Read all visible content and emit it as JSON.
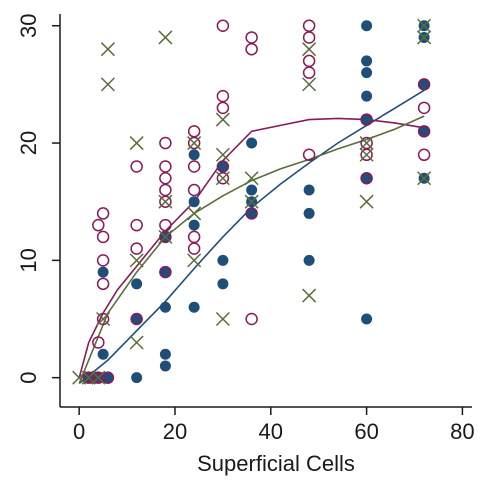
{
  "chart_data": {
    "type": "scatter",
    "title": "",
    "xlabel": "Superficial Cells",
    "ylabel": "",
    "xlim": [
      -4,
      82
    ],
    "ylim": [
      -2.5,
      31
    ],
    "x_ticks": [
      "0",
      "20",
      "40",
      "60",
      "80"
    ],
    "y_ticks": [
      "0",
      "10",
      "20",
      "30"
    ],
    "grid": false,
    "legend": "none",
    "colors": {
      "blue": "#1f4e79",
      "maroon": "#8a1a5a",
      "olive": "#5a6e3a",
      "axis": "#1a1a1a"
    },
    "series": [
      {
        "marker": "filled-circle",
        "color": "#1f4e79",
        "points": [
          [
            2,
            0
          ],
          [
            3,
            0
          ],
          [
            4,
            0
          ],
          [
            5,
            0
          ],
          [
            5,
            2
          ],
          [
            5,
            9
          ],
          [
            6,
            0
          ],
          [
            12,
            0
          ],
          [
            12,
            5
          ],
          [
            12,
            8
          ],
          [
            18,
            1
          ],
          [
            18,
            2
          ],
          [
            18,
            6
          ],
          [
            18,
            9
          ],
          [
            18,
            12
          ],
          [
            24,
            6
          ],
          [
            24,
            13
          ],
          [
            24,
            15
          ],
          [
            24,
            19
          ],
          [
            30,
            8
          ],
          [
            30,
            10
          ],
          [
            30,
            18
          ],
          [
            36,
            14
          ],
          [
            36,
            15
          ],
          [
            36,
            16
          ],
          [
            36,
            20
          ],
          [
            48,
            10
          ],
          [
            48,
            14
          ],
          [
            48,
            16
          ],
          [
            60,
            5
          ],
          [
            60,
            17
          ],
          [
            60,
            22
          ],
          [
            60,
            24
          ],
          [
            60,
            26
          ],
          [
            60,
            27
          ],
          [
            60,
            30
          ],
          [
            72,
            17
          ],
          [
            72,
            21
          ],
          [
            72,
            25
          ],
          [
            72,
            29
          ],
          [
            72,
            30
          ]
        ]
      },
      {
        "marker": "hollow-circle",
        "color": "#8a1a5a",
        "points": [
          [
            2,
            0
          ],
          [
            3,
            0
          ],
          [
            4,
            0
          ],
          [
            4,
            3
          ],
          [
            4,
            13
          ],
          [
            5,
            5
          ],
          [
            5,
            8
          ],
          [
            5,
            10
          ],
          [
            5,
            12
          ],
          [
            5,
            14
          ],
          [
            6,
            0
          ],
          [
            12,
            5
          ],
          [
            12,
            11
          ],
          [
            12,
            13
          ],
          [
            12,
            18
          ],
          [
            18,
            9
          ],
          [
            18,
            12
          ],
          [
            18,
            13
          ],
          [
            18,
            15
          ],
          [
            18,
            16
          ],
          [
            18,
            17
          ],
          [
            18,
            18
          ],
          [
            18,
            20
          ],
          [
            24,
            11
          ],
          [
            24,
            12
          ],
          [
            24,
            16
          ],
          [
            24,
            18
          ],
          [
            24,
            20
          ],
          [
            24,
            21
          ],
          [
            30,
            17
          ],
          [
            30,
            18
          ],
          [
            30,
            23
          ],
          [
            30,
            24
          ],
          [
            30,
            30
          ],
          [
            36,
            5
          ],
          [
            36,
            14
          ],
          [
            36,
            28
          ],
          [
            36,
            29
          ],
          [
            48,
            19
          ],
          [
            48,
            26
          ],
          [
            48,
            27
          ],
          [
            48,
            29
          ],
          [
            48,
            30
          ],
          [
            60,
            17
          ],
          [
            60,
            19
          ],
          [
            60,
            20
          ],
          [
            60,
            22
          ],
          [
            72,
            19
          ],
          [
            72,
            21
          ],
          [
            72,
            23
          ],
          [
            72,
            25
          ]
        ]
      },
      {
        "marker": "x",
        "color": "#5a6e3a",
        "points": [
          [
            0,
            0
          ],
          [
            2,
            0
          ],
          [
            4,
            0
          ],
          [
            5,
            5
          ],
          [
            6,
            25
          ],
          [
            6,
            28
          ],
          [
            12,
            3
          ],
          [
            12,
            10
          ],
          [
            12,
            20
          ],
          [
            18,
            12
          ],
          [
            18,
            15
          ],
          [
            18,
            29
          ],
          [
            24,
            10
          ],
          [
            24,
            14
          ],
          [
            24,
            20
          ],
          [
            30,
            5
          ],
          [
            30,
            17
          ],
          [
            30,
            19
          ],
          [
            30,
            22
          ],
          [
            36,
            15
          ],
          [
            36,
            17
          ],
          [
            48,
            7
          ],
          [
            48,
            25
          ],
          [
            48,
            28
          ],
          [
            60,
            15
          ],
          [
            60,
            19
          ],
          [
            60,
            20
          ],
          [
            72,
            17
          ],
          [
            72,
            29
          ],
          [
            72,
            30
          ]
        ]
      }
    ],
    "curves": [
      {
        "color": "#1f4e79",
        "points": [
          [
            0,
            -0.5
          ],
          [
            6,
            1.5
          ],
          [
            12,
            4
          ],
          [
            18,
            6.5
          ],
          [
            24,
            9.3
          ],
          [
            30,
            12
          ],
          [
            36,
            14.5
          ],
          [
            42,
            16.5
          ],
          [
            48,
            18.3
          ],
          [
            54,
            20
          ],
          [
            60,
            21.5
          ],
          [
            66,
            23
          ],
          [
            72,
            24.5
          ]
        ]
      },
      {
        "color": "#8a1a5a",
        "points": [
          [
            0,
            0
          ],
          [
            2,
            3
          ],
          [
            5,
            5.5
          ],
          [
            8,
            7.5
          ],
          [
            12,
            9.5
          ],
          [
            18,
            12.5
          ],
          [
            24,
            15
          ],
          [
            30,
            18.5
          ],
          [
            36,
            21
          ],
          [
            42,
            21.5
          ],
          [
            48,
            22
          ],
          [
            54,
            22.1
          ],
          [
            60,
            22
          ],
          [
            66,
            21.7
          ],
          [
            72,
            21.3
          ]
        ]
      },
      {
        "color": "#5a6e3a",
        "points": [
          [
            0,
            -0.5
          ],
          [
            3,
            2.5
          ],
          [
            6,
            5.5
          ],
          [
            12,
            9
          ],
          [
            18,
            12
          ],
          [
            24,
            14
          ],
          [
            30,
            15.5
          ],
          [
            36,
            16.8
          ],
          [
            42,
            17.8
          ],
          [
            48,
            18.6
          ],
          [
            54,
            19.5
          ],
          [
            60,
            20.3
          ],
          [
            66,
            21.2
          ],
          [
            72,
            22.3
          ]
        ]
      }
    ]
  }
}
